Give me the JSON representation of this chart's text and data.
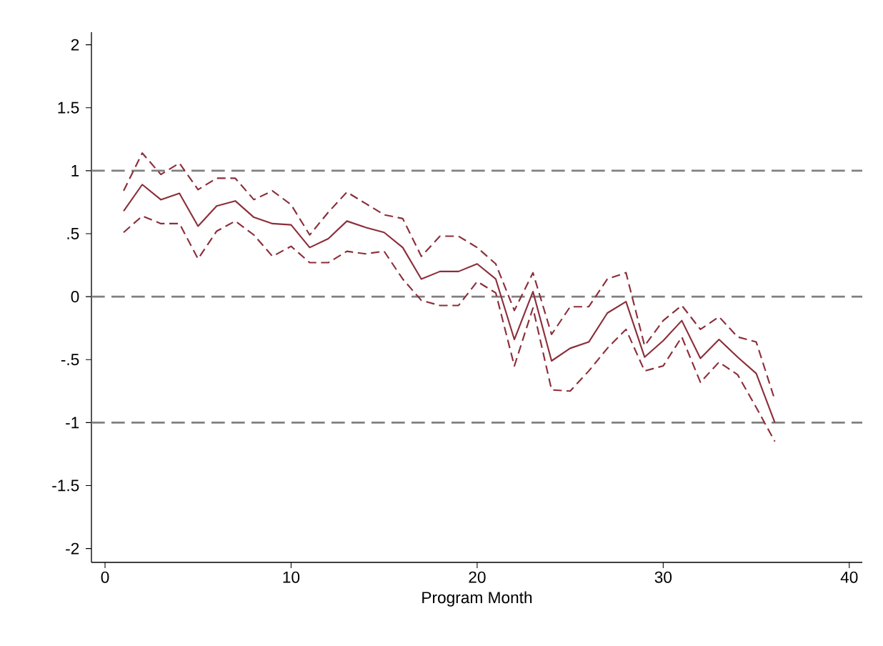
{
  "chart_data": {
    "type": "line",
    "xlabel": "Program Month",
    "x": [
      1,
      2,
      3,
      4,
      5,
      6,
      7,
      8,
      9,
      10,
      11,
      12,
      13,
      14,
      15,
      16,
      17,
      18,
      19,
      20,
      21,
      22,
      23,
      24,
      25,
      26,
      27,
      28,
      29,
      30,
      31,
      32,
      33,
      34,
      35,
      36
    ],
    "series": [
      {
        "color": "#8b2e3a",
        "line_style": "solid",
        "values": [
          0.68,
          0.89,
          0.77,
          0.82,
          0.56,
          0.72,
          0.76,
          0.63,
          0.58,
          0.57,
          0.39,
          0.46,
          0.6,
          0.55,
          0.51,
          0.39,
          0.14,
          0.2,
          0.2,
          0.26,
          0.14,
          -0.34,
          0.04,
          -0.51,
          -0.41,
          -0.36,
          -0.13,
          -0.04,
          -0.48,
          -0.35,
          -0.19,
          -0.49,
          -0.34,
          -0.48,
          -0.61,
          -1.0
        ]
      },
      {
        "color": "#8b2e3a",
        "line_style": "dashed",
        "values": [
          0.84,
          1.14,
          0.97,
          1.06,
          0.85,
          0.94,
          0.94,
          0.77,
          0.84,
          0.73,
          0.49,
          0.67,
          0.83,
          0.74,
          0.65,
          0.62,
          0.32,
          0.48,
          0.48,
          0.39,
          0.26,
          -0.11,
          0.19,
          -0.3,
          -0.08,
          -0.08,
          0.14,
          0.19,
          -0.39,
          -0.19,
          -0.07,
          -0.26,
          -0.16,
          -0.32,
          -0.36,
          -0.82
        ]
      },
      {
        "color": "#8b2e3a",
        "line_style": "dashed",
        "values": [
          0.51,
          0.64,
          0.58,
          0.58,
          0.3,
          0.52,
          0.6,
          0.49,
          0.32,
          0.4,
          0.27,
          0.27,
          0.36,
          0.34,
          0.36,
          0.14,
          -0.03,
          -0.07,
          -0.07,
          0.12,
          0.03,
          -0.55,
          -0.09,
          -0.74,
          -0.75,
          -0.59,
          -0.41,
          -0.26,
          -0.59,
          -0.55,
          -0.32,
          -0.68,
          -0.52,
          -0.62,
          -0.88,
          -1.15
        ]
      }
    ],
    "xlim": [
      -0.73,
      40.7
    ],
    "ylim": [
      -2.11,
      2.1
    ],
    "xticks": [
      0,
      10,
      20,
      30,
      40
    ],
    "yticks": [
      {
        "value": -2,
        "label": "-2"
      },
      {
        "value": -1.5,
        "label": "-1.5"
      },
      {
        "value": -1,
        "label": "-1"
      },
      {
        "value": -0.5,
        "label": "-.5"
      },
      {
        "value": 0,
        "label": "0"
      },
      {
        "value": 0.5,
        "label": ".5"
      },
      {
        "value": 1,
        "label": "1"
      },
      {
        "value": 1.5,
        "label": "1.5"
      },
      {
        "value": 2,
        "label": "2"
      }
    ],
    "ref_lines": [
      {
        "axis": "y",
        "value": 1,
        "color": "#808080",
        "line_style": "dashed"
      },
      {
        "axis": "y",
        "value": 0,
        "color": "#808080",
        "line_style": "dashed"
      },
      {
        "axis": "y",
        "value": -1,
        "color": "#808080",
        "line_style": "dashed"
      }
    ],
    "grid": false
  }
}
